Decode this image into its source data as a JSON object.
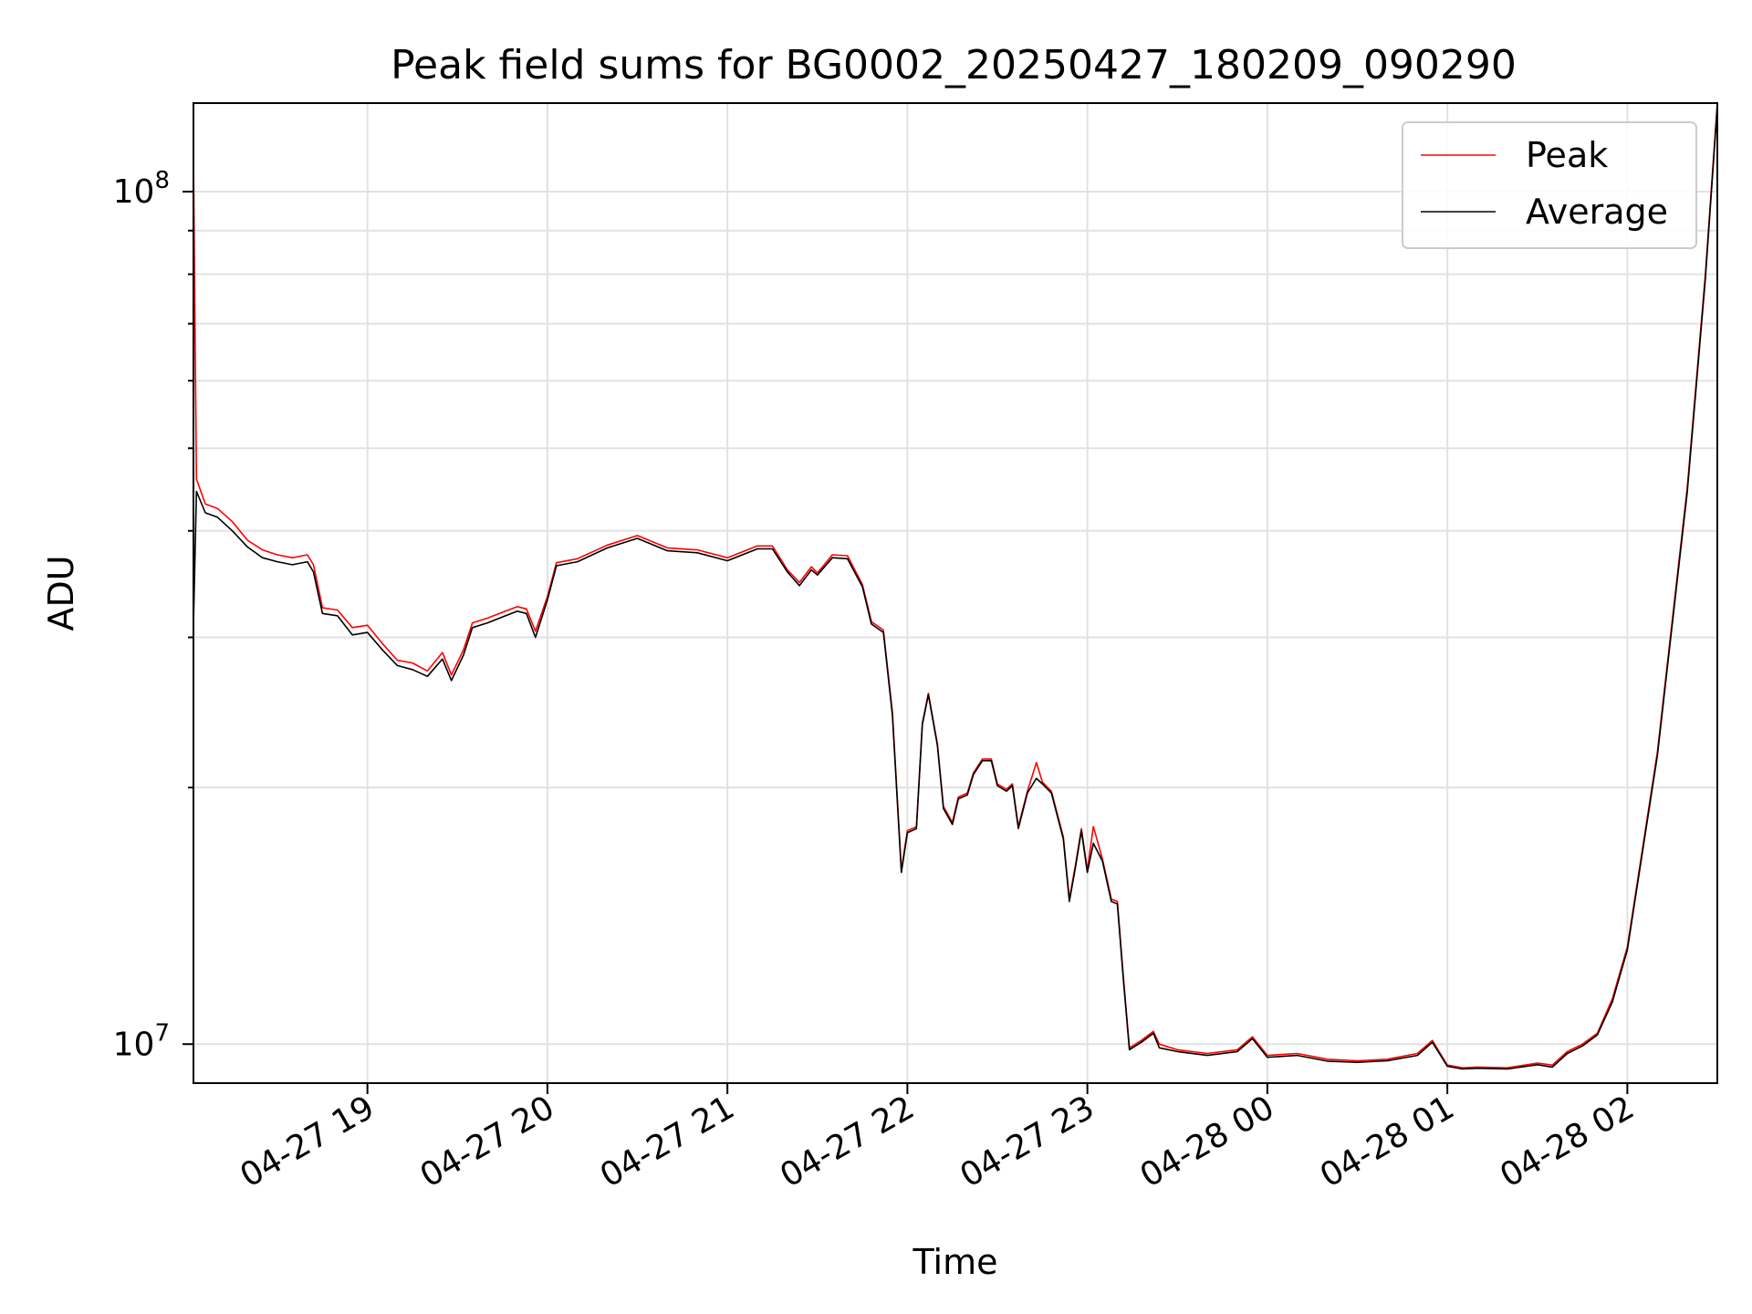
{
  "chart_data": {
    "type": "line",
    "title": "Peak field sums for BG0002_20250427_180209_090290",
    "xlabel": "Time",
    "ylabel": "ADU",
    "yscale": "log",
    "ylim": [
      9000000,
      127000000
    ],
    "xlim": [
      "2025-04-27 18:02",
      "2025-04-28 02:30"
    ],
    "grid": true,
    "legend_position": "top-right",
    "x_ticks": [
      {
        "time": "2025-04-27 19:00",
        "label": "04-27 19"
      },
      {
        "time": "2025-04-27 20:00",
        "label": "04-27 20"
      },
      {
        "time": "2025-04-27 21:00",
        "label": "04-27 21"
      },
      {
        "time": "2025-04-27 22:00",
        "label": "04-27 22"
      },
      {
        "time": "2025-04-27 23:00",
        "label": "04-27 23"
      },
      {
        "time": "2025-04-28 00:00",
        "label": "04-28 00"
      },
      {
        "time": "2025-04-28 01:00",
        "label": "04-28 01"
      },
      {
        "time": "2025-04-28 02:00",
        "label": "04-28 02"
      }
    ],
    "y_ticks": [
      {
        "value": 10000000,
        "base": "10",
        "exp": "7"
      },
      {
        "value": 100000000,
        "base": "10",
        "exp": "8"
      }
    ],
    "y_minor_ticks": [
      20000000,
      30000000,
      40000000,
      50000000,
      60000000,
      70000000,
      80000000,
      90000000
    ],
    "series": [
      {
        "name": "Peak",
        "color": "#ff0000",
        "points": [
          [
            "2025-04-27 18:02",
            110000000
          ],
          [
            "2025-04-27 18:03",
            46000000
          ],
          [
            "2025-04-27 18:06",
            43000000
          ],
          [
            "2025-04-27 18:10",
            42500000
          ],
          [
            "2025-04-27 18:15",
            41000000
          ],
          [
            "2025-04-27 18:20",
            39000000
          ],
          [
            "2025-04-27 18:25",
            38000000
          ],
          [
            "2025-04-27 18:30",
            37500000
          ],
          [
            "2025-04-27 18:35",
            37200000
          ],
          [
            "2025-04-27 18:40",
            37500000
          ],
          [
            "2025-04-27 18:42",
            36500000
          ],
          [
            "2025-04-27 18:45",
            32500000
          ],
          [
            "2025-04-27 18:50",
            32300000
          ],
          [
            "2025-04-27 18:55",
            30800000
          ],
          [
            "2025-04-27 19:00",
            31000000
          ],
          [
            "2025-04-27 19:05",
            29500000
          ],
          [
            "2025-04-27 19:10",
            28200000
          ],
          [
            "2025-04-27 19:15",
            28000000
          ],
          [
            "2025-04-27 19:20",
            27400000
          ],
          [
            "2025-04-27 19:25",
            28800000
          ],
          [
            "2025-04-27 19:28",
            27100000
          ],
          [
            "2025-04-27 19:32",
            29000000
          ],
          [
            "2025-04-27 19:35",
            31200000
          ],
          [
            "2025-04-27 19:40",
            31600000
          ],
          [
            "2025-04-27 19:45",
            32100000
          ],
          [
            "2025-04-27 19:50",
            32600000
          ],
          [
            "2025-04-27 19:53",
            32400000
          ],
          [
            "2025-04-27 19:56",
            30500000
          ],
          [
            "2025-04-27 20:00",
            33500000
          ],
          [
            "2025-04-27 20:03",
            36700000
          ],
          [
            "2025-04-27 20:10",
            37100000
          ],
          [
            "2025-04-27 20:20",
            38500000
          ],
          [
            "2025-04-27 20:30",
            39500000
          ],
          [
            "2025-04-27 20:40",
            38200000
          ],
          [
            "2025-04-27 20:50",
            38000000
          ],
          [
            "2025-04-27 21:00",
            37200000
          ],
          [
            "2025-04-27 21:05",
            37800000
          ],
          [
            "2025-04-27 21:10",
            38400000
          ],
          [
            "2025-04-27 21:15",
            38400000
          ],
          [
            "2025-04-27 21:20",
            36000000
          ],
          [
            "2025-04-27 21:24",
            34800000
          ],
          [
            "2025-04-27 21:28",
            36300000
          ],
          [
            "2025-04-27 21:30",
            35700000
          ],
          [
            "2025-04-27 21:35",
            37500000
          ],
          [
            "2025-04-27 21:40",
            37400000
          ],
          [
            "2025-04-27 21:45",
            34600000
          ],
          [
            "2025-04-27 21:48",
            31300000
          ],
          [
            "2025-04-27 21:52",
            30600000
          ],
          [
            "2025-04-27 21:55",
            24500000
          ],
          [
            "2025-04-27 21:58",
            16000000
          ],
          [
            "2025-04-27 22:00",
            17800000
          ],
          [
            "2025-04-27 22:03",
            18000000
          ],
          [
            "2025-04-27 22:05",
            23800000
          ],
          [
            "2025-04-27 22:07",
            25800000
          ],
          [
            "2025-04-27 22:10",
            22500000
          ],
          [
            "2025-04-27 22:12",
            19000000
          ],
          [
            "2025-04-27 22:15",
            18200000
          ],
          [
            "2025-04-27 22:17",
            19500000
          ],
          [
            "2025-04-27 22:20",
            19700000
          ],
          [
            "2025-04-27 22:22",
            20800000
          ],
          [
            "2025-04-27 22:25",
            21600000
          ],
          [
            "2025-04-27 22:28",
            21600000
          ],
          [
            "2025-04-27 22:30",
            20200000
          ],
          [
            "2025-04-27 22:33",
            19900000
          ],
          [
            "2025-04-27 22:35",
            20200000
          ],
          [
            "2025-04-27 22:37",
            18000000
          ],
          [
            "2025-04-27 22:40",
            19800000
          ],
          [
            "2025-04-27 22:43",
            21400000
          ],
          [
            "2025-04-27 22:45",
            20300000
          ],
          [
            "2025-04-27 22:48",
            19800000
          ],
          [
            "2025-04-27 22:52",
            17500000
          ],
          [
            "2025-04-27 22:54",
            14800000
          ],
          [
            "2025-04-27 22:56",
            16200000
          ],
          [
            "2025-04-27 22:58",
            17900000
          ],
          [
            "2025-04-27 23:00",
            16000000
          ],
          [
            "2025-04-27 23:02",
            18000000
          ],
          [
            "2025-04-27 23:05",
            16500000
          ],
          [
            "2025-04-27 23:08",
            14800000
          ],
          [
            "2025-04-27 23:10",
            14700000
          ],
          [
            "2025-04-27 23:12",
            12000000
          ],
          [
            "2025-04-27 23:14",
            9900000
          ],
          [
            "2025-04-27 23:18",
            10100000
          ],
          [
            "2025-04-27 23:22",
            10350000
          ],
          [
            "2025-04-27 23:24",
            10000000
          ],
          [
            "2025-04-27 23:30",
            9850000
          ],
          [
            "2025-04-27 23:40",
            9750000
          ],
          [
            "2025-04-27 23:50",
            9850000
          ],
          [
            "2025-04-27 23:55",
            10200000
          ],
          [
            "2025-04-28 00:00",
            9700000
          ],
          [
            "2025-04-28 00:10",
            9750000
          ],
          [
            "2025-04-28 00:20",
            9600000
          ],
          [
            "2025-04-28 00:30",
            9560000
          ],
          [
            "2025-04-28 00:40",
            9600000
          ],
          [
            "2025-04-28 00:50",
            9750000
          ],
          [
            "2025-04-28 00:55",
            10100000
          ],
          [
            "2025-04-28 01:00",
            9450000
          ],
          [
            "2025-04-28 01:05",
            9380000
          ],
          [
            "2025-04-28 01:10",
            9400000
          ],
          [
            "2025-04-28 01:20",
            9380000
          ],
          [
            "2025-04-28 01:30",
            9500000
          ],
          [
            "2025-04-28 01:35",
            9450000
          ],
          [
            "2025-04-28 01:40",
            9800000
          ],
          [
            "2025-04-28 01:45",
            10000000
          ],
          [
            "2025-04-28 01:50",
            10300000
          ],
          [
            "2025-04-28 01:55",
            11300000
          ],
          [
            "2025-04-28 02:00",
            13000000
          ],
          [
            "2025-04-28 02:10",
            22000000
          ],
          [
            "2025-04-28 02:20",
            45000000
          ],
          [
            "2025-04-28 02:26",
            80000000
          ],
          [
            "2025-04-28 02:30",
            127000000
          ]
        ]
      },
      {
        "name": "Average",
        "color": "#000000",
        "points": [
          [
            "2025-04-27 18:02",
            31000000
          ],
          [
            "2025-04-27 18:03",
            44500000
          ],
          [
            "2025-04-27 18:06",
            42000000
          ],
          [
            "2025-04-27 18:10",
            41500000
          ],
          [
            "2025-04-27 18:15",
            40000000
          ],
          [
            "2025-04-27 18:20",
            38300000
          ],
          [
            "2025-04-27 18:25",
            37200000
          ],
          [
            "2025-04-27 18:30",
            36800000
          ],
          [
            "2025-04-27 18:35",
            36500000
          ],
          [
            "2025-04-27 18:40",
            36800000
          ],
          [
            "2025-04-27 18:42",
            35800000
          ],
          [
            "2025-04-27 18:45",
            32000000
          ],
          [
            "2025-04-27 18:50",
            31800000
          ],
          [
            "2025-04-27 18:55",
            30200000
          ],
          [
            "2025-04-27 19:00",
            30400000
          ],
          [
            "2025-04-27 19:05",
            29000000
          ],
          [
            "2025-04-27 19:10",
            27800000
          ],
          [
            "2025-04-27 19:15",
            27500000
          ],
          [
            "2025-04-27 19:20",
            27000000
          ],
          [
            "2025-04-27 19:25",
            28300000
          ],
          [
            "2025-04-27 19:28",
            26700000
          ],
          [
            "2025-04-27 19:32",
            28600000
          ],
          [
            "2025-04-27 19:35",
            30800000
          ],
          [
            "2025-04-27 19:40",
            31200000
          ],
          [
            "2025-04-27 19:45",
            31700000
          ],
          [
            "2025-04-27 19:50",
            32200000
          ],
          [
            "2025-04-27 19:53",
            32000000
          ],
          [
            "2025-04-27 19:56",
            30000000
          ],
          [
            "2025-04-27 20:00",
            33200000
          ],
          [
            "2025-04-27 20:03",
            36400000
          ],
          [
            "2025-04-27 20:10",
            36800000
          ],
          [
            "2025-04-27 20:20",
            38200000
          ],
          [
            "2025-04-27 20:30",
            39200000
          ],
          [
            "2025-04-27 20:40",
            37900000
          ],
          [
            "2025-04-27 20:50",
            37700000
          ],
          [
            "2025-04-27 21:00",
            36900000
          ],
          [
            "2025-04-27 21:05",
            37500000
          ],
          [
            "2025-04-27 21:10",
            38100000
          ],
          [
            "2025-04-27 21:15",
            38100000
          ],
          [
            "2025-04-27 21:20",
            35800000
          ],
          [
            "2025-04-27 21:24",
            34500000
          ],
          [
            "2025-04-27 21:28",
            36000000
          ],
          [
            "2025-04-27 21:30",
            35500000
          ],
          [
            "2025-04-27 21:35",
            37200000
          ],
          [
            "2025-04-27 21:40",
            37100000
          ],
          [
            "2025-04-27 21:45",
            34400000
          ],
          [
            "2025-04-27 21:48",
            31100000
          ],
          [
            "2025-04-27 21:52",
            30400000
          ],
          [
            "2025-04-27 21:55",
            24300000
          ],
          [
            "2025-04-27 21:58",
            15900000
          ],
          [
            "2025-04-27 22:00",
            17700000
          ],
          [
            "2025-04-27 22:03",
            17900000
          ],
          [
            "2025-04-27 22:05",
            23700000
          ],
          [
            "2025-04-27 22:07",
            25700000
          ],
          [
            "2025-04-27 22:10",
            22400000
          ],
          [
            "2025-04-27 22:12",
            18900000
          ],
          [
            "2025-04-27 22:15",
            18100000
          ],
          [
            "2025-04-27 22:17",
            19400000
          ],
          [
            "2025-04-27 22:20",
            19600000
          ],
          [
            "2025-04-27 22:22",
            20700000
          ],
          [
            "2025-04-27 22:25",
            21500000
          ],
          [
            "2025-04-27 22:28",
            21500000
          ],
          [
            "2025-04-27 22:30",
            20100000
          ],
          [
            "2025-04-27 22:33",
            19800000
          ],
          [
            "2025-04-27 22:35",
            20100000
          ],
          [
            "2025-04-27 22:37",
            17900000
          ],
          [
            "2025-04-27 22:40",
            19700000
          ],
          [
            "2025-04-27 22:43",
            20500000
          ],
          [
            "2025-04-27 22:45",
            20200000
          ],
          [
            "2025-04-27 22:48",
            19700000
          ],
          [
            "2025-04-27 22:52",
            17400000
          ],
          [
            "2025-04-27 22:54",
            14700000
          ],
          [
            "2025-04-27 22:56",
            16100000
          ],
          [
            "2025-04-27 22:58",
            17800000
          ],
          [
            "2025-04-27 23:00",
            15900000
          ],
          [
            "2025-04-27 23:02",
            17200000
          ],
          [
            "2025-04-27 23:05",
            16400000
          ],
          [
            "2025-04-27 23:08",
            14700000
          ],
          [
            "2025-04-27 23:10",
            14600000
          ],
          [
            "2025-04-27 23:12",
            11900000
          ],
          [
            "2025-04-27 23:14",
            9850000
          ],
          [
            "2025-04-27 23:18",
            10050000
          ],
          [
            "2025-04-27 23:22",
            10300000
          ],
          [
            "2025-04-27 23:24",
            9900000
          ],
          [
            "2025-04-27 23:30",
            9800000
          ],
          [
            "2025-04-27 23:40",
            9700000
          ],
          [
            "2025-04-27 23:50",
            9800000
          ],
          [
            "2025-04-27 23:55",
            10150000
          ],
          [
            "2025-04-28 00:00",
            9650000
          ],
          [
            "2025-04-28 00:10",
            9700000
          ],
          [
            "2025-04-28 00:20",
            9550000
          ],
          [
            "2025-04-28 00:30",
            9520000
          ],
          [
            "2025-04-28 00:40",
            9560000
          ],
          [
            "2025-04-28 00:50",
            9700000
          ],
          [
            "2025-04-28 00:55",
            10050000
          ],
          [
            "2025-04-28 01:00",
            9420000
          ],
          [
            "2025-04-28 01:05",
            9350000
          ],
          [
            "2025-04-28 01:10",
            9370000
          ],
          [
            "2025-04-28 01:20",
            9350000
          ],
          [
            "2025-04-28 01:30",
            9460000
          ],
          [
            "2025-04-28 01:35",
            9400000
          ],
          [
            "2025-04-28 01:40",
            9750000
          ],
          [
            "2025-04-28 01:45",
            9950000
          ],
          [
            "2025-04-28 01:50",
            10250000
          ],
          [
            "2025-04-28 01:55",
            11200000
          ],
          [
            "2025-04-28 02:00",
            12900000
          ],
          [
            "2025-04-28 02:10",
            21800000
          ],
          [
            "2025-04-28 02:20",
            44500000
          ],
          [
            "2025-04-28 02:26",
            79000000
          ],
          [
            "2025-04-28 02:30",
            126000000
          ]
        ]
      }
    ]
  }
}
